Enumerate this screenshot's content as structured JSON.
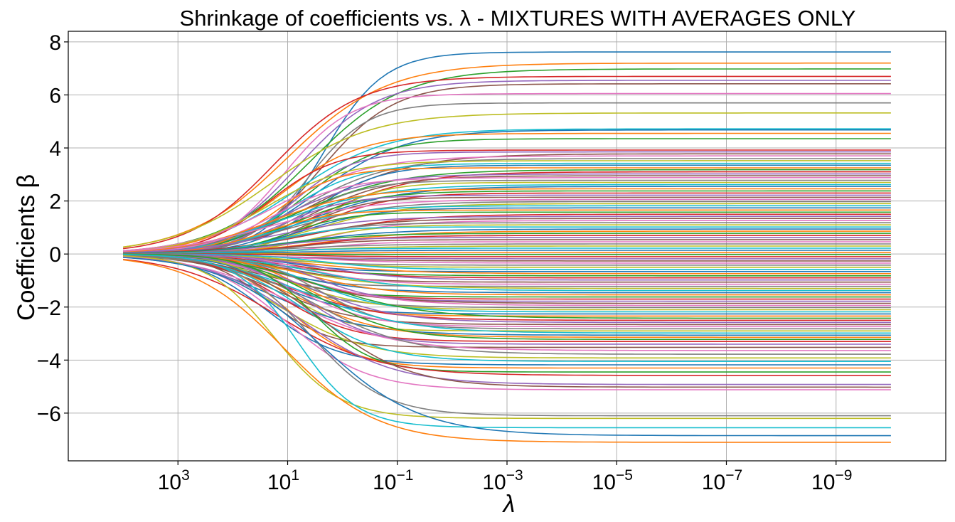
{
  "chart_data": {
    "type": "line",
    "title": "Shrinkage of coefficients vs. λ - MIXTURES WITH AVERAGES ONLY",
    "xlabel": "λ",
    "ylabel": "Coefficients β",
    "xscale": "log",
    "x_reversed": true,
    "xlim": [
      100000,
      1e-11
    ],
    "ylim": [
      -7.8,
      8.4
    ],
    "grid": true,
    "legend": "none",
    "x_start": 10000,
    "x_end": 1e-10,
    "x_ticks": [
      {
        "value": 1000,
        "base": "10",
        "exp": "3"
      },
      {
        "value": 10,
        "base": "10",
        "exp": "1"
      },
      {
        "value": 0.1,
        "base": "10",
        "exp": "−1"
      },
      {
        "value": 0.001,
        "base": "10",
        "exp": "−3"
      },
      {
        "value": 1e-05,
        "base": "10",
        "exp": "−5"
      },
      {
        "value": 1e-07,
        "base": "10",
        "exp": "−7"
      },
      {
        "value": 1e-09,
        "base": "10",
        "exp": "−9"
      }
    ],
    "y_ticks": [
      {
        "value": 8,
        "label": "8"
      },
      {
        "value": 6,
        "label": "6"
      },
      {
        "value": 4,
        "label": "4"
      },
      {
        "value": 2,
        "label": "2"
      },
      {
        "value": 0,
        "label": "0"
      },
      {
        "value": -2,
        "label": "−2"
      },
      {
        "value": -4,
        "label": "−4"
      },
      {
        "value": -6,
        "label": "−6"
      }
    ],
    "colors": [
      "#1f77b4",
      "#ff7f0e",
      "#2ca02c",
      "#d62728",
      "#9467bd",
      "#8c564b",
      "#e377c2",
      "#7f7f7f",
      "#bcbd22",
      "#17becf"
    ],
    "series_asymptotes": [
      7.62,
      7.2,
      6.98,
      6.7,
      6.55,
      6.42,
      6.05,
      5.7,
      5.32,
      4.72,
      4.68,
      4.55,
      4.35,
      3.92,
      3.85,
      3.78,
      3.7,
      3.6,
      3.52,
      3.42,
      3.35,
      3.25,
      3.18,
      3.1,
      3.02,
      2.95,
      2.88,
      2.78,
      2.7,
      2.62,
      2.55,
      2.46,
      2.38,
      2.3,
      2.22,
      2.14,
      2.06,
      1.98,
      1.9,
      1.82,
      1.74,
      1.66,
      1.58,
      1.5,
      1.42,
      1.34,
      1.26,
      1.18,
      1.1,
      1.02,
      0.94,
      0.86,
      0.78,
      0.7,
      0.62,
      0.54,
      0.46,
      0.38,
      0.3,
      0.22,
      0.14,
      0.06,
      -0.02,
      -0.1,
      -0.18,
      -0.26,
      -0.34,
      -0.42,
      -0.5,
      -0.58,
      -0.66,
      -0.74,
      -0.82,
      -0.9,
      -0.98,
      -1.06,
      -1.14,
      -1.22,
      -1.3,
      -1.38,
      -1.46,
      -1.54,
      -1.62,
      -1.7,
      -1.78,
      -1.86,
      -1.94,
      -2.02,
      -2.1,
      -2.18,
      -2.26,
      -2.34,
      -2.42,
      -2.5,
      -2.58,
      -2.66,
      -2.74,
      -2.82,
      -2.9,
      -2.98,
      -3.06,
      -3.14,
      -3.22,
      -3.3,
      -3.4,
      -3.52,
      -3.64,
      -3.78,
      -3.92,
      -4.05,
      -4.18,
      -4.3,
      -4.45,
      -4.58,
      -4.92,
      -5.02,
      -5.12,
      -6.1,
      -6.2,
      -6.55,
      -6.85,
      -7.1
    ]
  }
}
